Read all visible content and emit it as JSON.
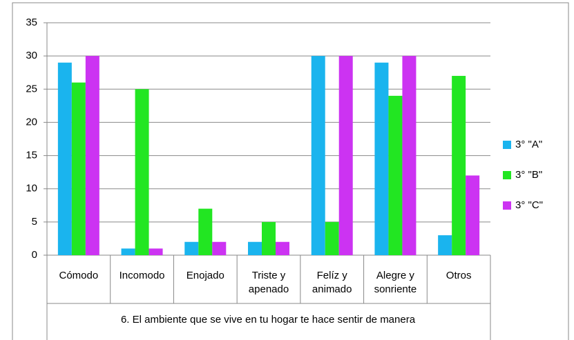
{
  "chart_data": {
    "type": "bar",
    "x_label": "6. El ambiente que se vive en tu hogar te hace sentir de manera",
    "categories": [
      "Cómodo",
      "Incomodo",
      "Enojado",
      "Triste y apenado",
      "Felíz y animado",
      "Alegre y sonriente",
      "Otros"
    ],
    "series": [
      {
        "name": "3° \"A\"",
        "color": "#1ab4ee",
        "values": [
          29,
          1,
          2,
          2,
          30,
          29,
          3
        ]
      },
      {
        "name": "3° \"B\"",
        "color": "#22e622",
        "values": [
          26,
          25,
          7,
          5,
          5,
          24,
          27
        ]
      },
      {
        "name": "3° \"C\"",
        "color": "#cc33f2",
        "values": [
          30,
          1,
          2,
          2,
          30,
          30,
          12
        ]
      }
    ],
    "ylim": [
      0,
      35
    ],
    "yticks": [
      0,
      5,
      10,
      15,
      20,
      25,
      30,
      35
    ],
    "grid": true,
    "legend": "right"
  }
}
